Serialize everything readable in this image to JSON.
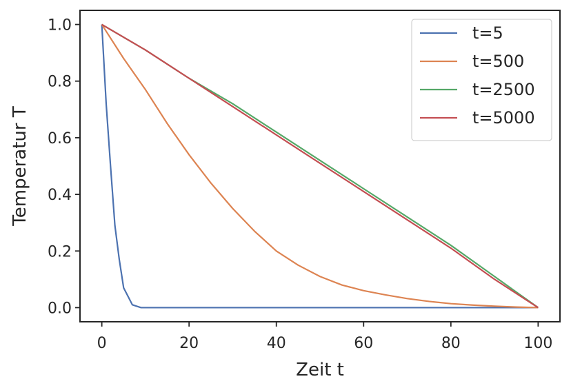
{
  "chart_data": {
    "type": "line",
    "title": "",
    "xlabel": "Zeit t",
    "ylabel": "Temperatur T",
    "xlim": [
      -5,
      105
    ],
    "ylim": [
      -0.05,
      1.05
    ],
    "xticks": [
      0,
      20,
      40,
      60,
      80,
      100
    ],
    "yticks": [
      0.0,
      0.2,
      0.4,
      0.6,
      0.8,
      1.0
    ],
    "xtick_labels": [
      "0",
      "20",
      "40",
      "60",
      "80",
      "100"
    ],
    "ytick_labels": [
      "0.0",
      "0.2",
      "0.4",
      "0.6",
      "0.8",
      "1.0"
    ],
    "grid": false,
    "legend_position": "top-right",
    "series": [
      {
        "name": "t=5",
        "color": "#4c72b0",
        "x": [
          0,
          1,
          2,
          3,
          4,
          5,
          6,
          7,
          8,
          9,
          10,
          20,
          40,
          60,
          80,
          100
        ],
        "y": [
          1.0,
          0.72,
          0.5,
          0.29,
          0.17,
          0.07,
          0.04,
          0.01,
          0.005,
          0.0,
          0.0,
          0.0,
          0.0,
          0.0,
          0.0,
          0.0
        ]
      },
      {
        "name": "t=500",
        "color": "#dd8452",
        "x": [
          0,
          5,
          10,
          15,
          20,
          25,
          30,
          35,
          40,
          45,
          50,
          55,
          60,
          65,
          70,
          75,
          80,
          85,
          90,
          95,
          100
        ],
        "y": [
          1.0,
          0.88,
          0.77,
          0.65,
          0.54,
          0.44,
          0.35,
          0.27,
          0.2,
          0.15,
          0.11,
          0.08,
          0.06,
          0.045,
          0.032,
          0.022,
          0.014,
          0.009,
          0.005,
          0.002,
          0.0
        ]
      },
      {
        "name": "t=2500",
        "color": "#55a868",
        "x": [
          0,
          10,
          20,
          30,
          40,
          50,
          60,
          70,
          80,
          90,
          100
        ],
        "y": [
          1.0,
          0.91,
          0.81,
          0.72,
          0.62,
          0.52,
          0.42,
          0.32,
          0.22,
          0.11,
          0.0
        ]
      },
      {
        "name": "t=5000",
        "color": "#c44e52",
        "x": [
          0,
          10,
          20,
          30,
          40,
          50,
          60,
          70,
          80,
          90,
          100
        ],
        "y": [
          1.0,
          0.91,
          0.81,
          0.71,
          0.61,
          0.51,
          0.41,
          0.31,
          0.21,
          0.1,
          0.0
        ]
      }
    ]
  }
}
